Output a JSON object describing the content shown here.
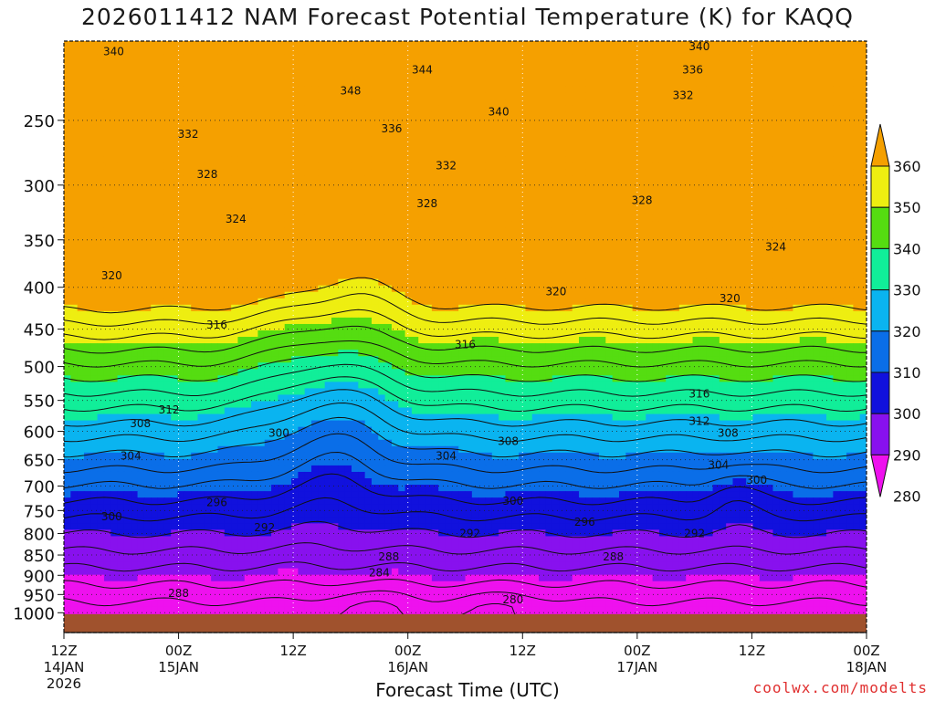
{
  "chart_data": {
    "type": "heatmap",
    "title": "2026011412 NAM Forecast Potential Temperature (K) for KAQQ",
    "xlabel": "Forecast Time (UTC)",
    "ylabel": "",
    "x_ticks": [
      {
        "line1": "12Z",
        "line2": "14JAN",
        "line3": "2026"
      },
      {
        "line1": "00Z",
        "line2": "15JAN",
        "line3": ""
      },
      {
        "line1": "12Z",
        "line2": "",
        "line3": ""
      },
      {
        "line1": "00Z",
        "line2": "16JAN",
        "line3": ""
      },
      {
        "line1": "12Z",
        "line2": "",
        "line3": ""
      },
      {
        "line1": "00Z",
        "line2": "17JAN",
        "line3": ""
      },
      {
        "line1": "12Z",
        "line2": "",
        "line3": ""
      },
      {
        "line1": "00Z",
        "line2": "18JAN",
        "line3": ""
      }
    ],
    "x_range_hours": [
      0,
      84
    ],
    "y_ticks": [
      250,
      300,
      350,
      400,
      450,
      500,
      550,
      600,
      650,
      700,
      750,
      800,
      850,
      900,
      950,
      1000
    ],
    "y_range_hPa": [
      200,
      1020
    ],
    "y_scale": "log",
    "colorbar": {
      "levels": [
        280,
        290,
        300,
        310,
        320,
        330,
        340,
        350,
        360
      ],
      "labels": [
        "280",
        "290",
        "300",
        "310",
        "320",
        "330",
        "340",
        "350",
        "360"
      ],
      "colors": [
        "#ee11ee",
        "#8811ee",
        "#1111dd",
        "#0a6ee8",
        "#0ab4f0",
        "#11ee99",
        "#55dd11",
        "#eeee11",
        "#f5a000"
      ]
    },
    "contour_labels": [
      {
        "text": "340",
        "hour": 5.2,
        "p": 206
      },
      {
        "text": "340",
        "hour": 66.5,
        "p": 203
      },
      {
        "text": "336",
        "hour": 65.8,
        "p": 217
      },
      {
        "text": "344",
        "hour": 37.5,
        "p": 217
      },
      {
        "text": "348",
        "hour": 30,
        "p": 230
      },
      {
        "text": "332",
        "hour": 64.8,
        "p": 233
      },
      {
        "text": "340",
        "hour": 45.5,
        "p": 244
      },
      {
        "text": "336",
        "hour": 34.3,
        "p": 256
      },
      {
        "text": "332",
        "hour": 13,
        "p": 260
      },
      {
        "text": "332",
        "hour": 40,
        "p": 284
      },
      {
        "text": "328",
        "hour": 15,
        "p": 291
      },
      {
        "text": "328",
        "hour": 38,
        "p": 316
      },
      {
        "text": "328",
        "hour": 60.5,
        "p": 313
      },
      {
        "text": "324",
        "hour": 18,
        "p": 330
      },
      {
        "text": "324",
        "hour": 74.5,
        "p": 357
      },
      {
        "text": "320",
        "hour": 5,
        "p": 387
      },
      {
        "text": "320",
        "hour": 51.5,
        "p": 405
      },
      {
        "text": "320",
        "hour": 69.7,
        "p": 413
      },
      {
        "text": "316",
        "hour": 16,
        "p": 445
      },
      {
        "text": "316",
        "hour": 42,
        "p": 470
      },
      {
        "text": "316",
        "hour": 66.5,
        "p": 540
      },
      {
        "text": "312",
        "hour": 11,
        "p": 565
      },
      {
        "text": "312",
        "hour": 66.5,
        "p": 583
      },
      {
        "text": "308",
        "hour": 8,
        "p": 587
      },
      {
        "text": "308",
        "hour": 46.5,
        "p": 617
      },
      {
        "text": "308",
        "hour": 69.5,
        "p": 603
      },
      {
        "text": "304",
        "hour": 7,
        "p": 643
      },
      {
        "text": "304",
        "hour": 40,
        "p": 643
      },
      {
        "text": "304",
        "hour": 68.5,
        "p": 660
      },
      {
        "text": "300",
        "hour": 22.5,
        "p": 603
      },
      {
        "text": "300",
        "hour": 72.5,
        "p": 688
      },
      {
        "text": "300",
        "hour": 47,
        "p": 730
      },
      {
        "text": "300",
        "hour": 5,
        "p": 763
      },
      {
        "text": "296",
        "hour": 16,
        "p": 733
      },
      {
        "text": "296",
        "hour": 54.5,
        "p": 775
      },
      {
        "text": "292",
        "hour": 21,
        "p": 787
      },
      {
        "text": "292",
        "hour": 42.5,
        "p": 800
      },
      {
        "text": "292",
        "hour": 66,
        "p": 800
      },
      {
        "text": "288",
        "hour": 34,
        "p": 854
      },
      {
        "text": "288",
        "hour": 57.5,
        "p": 854
      },
      {
        "text": "288",
        "hour": 12,
        "p": 947
      },
      {
        "text": "284",
        "hour": 33,
        "p": 893
      },
      {
        "text": "280",
        "hour": 47,
        "p": 964
      }
    ],
    "credit": "coolwx.com/modelts"
  }
}
